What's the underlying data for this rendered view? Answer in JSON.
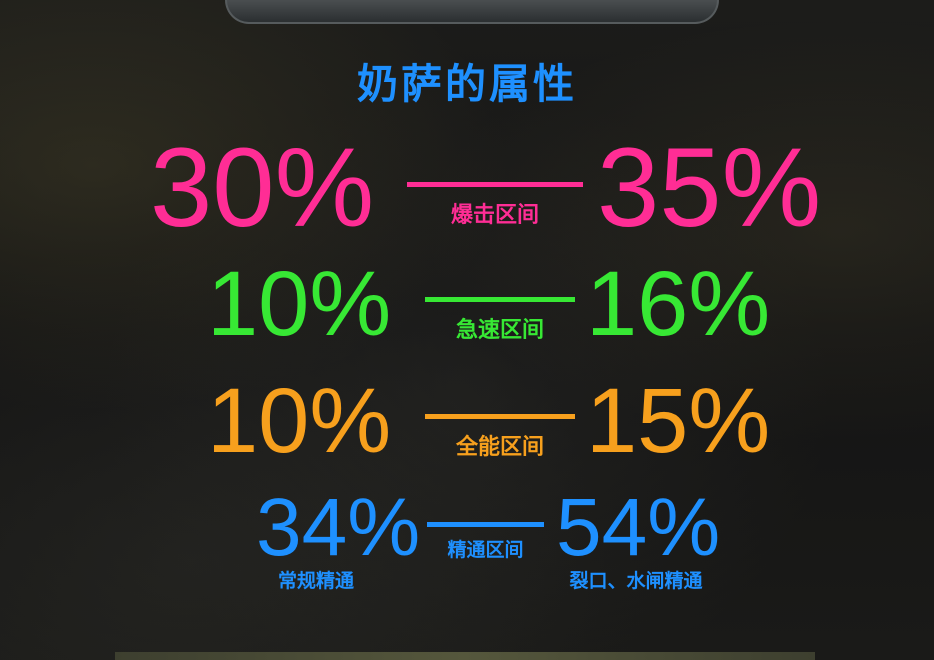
{
  "colors": {
    "pink": "#ff2d95",
    "green": "#37e834",
    "orange": "#f7a01d",
    "blue": "#1e90ff",
    "background": "#151515"
  },
  "title": "奶萨的属性",
  "rows": [
    {
      "low": "30%",
      "label": "爆击区间",
      "high": "35%"
    },
    {
      "low": "10%",
      "label": "急速区间",
      "high": "16%"
    },
    {
      "low": "10%",
      "label": "全能区间",
      "high": "15%"
    },
    {
      "low": "34%",
      "label": "精通区间",
      "high": "54%",
      "low_note": "常规精通",
      "high_note": "裂口、水闸精通"
    }
  ]
}
